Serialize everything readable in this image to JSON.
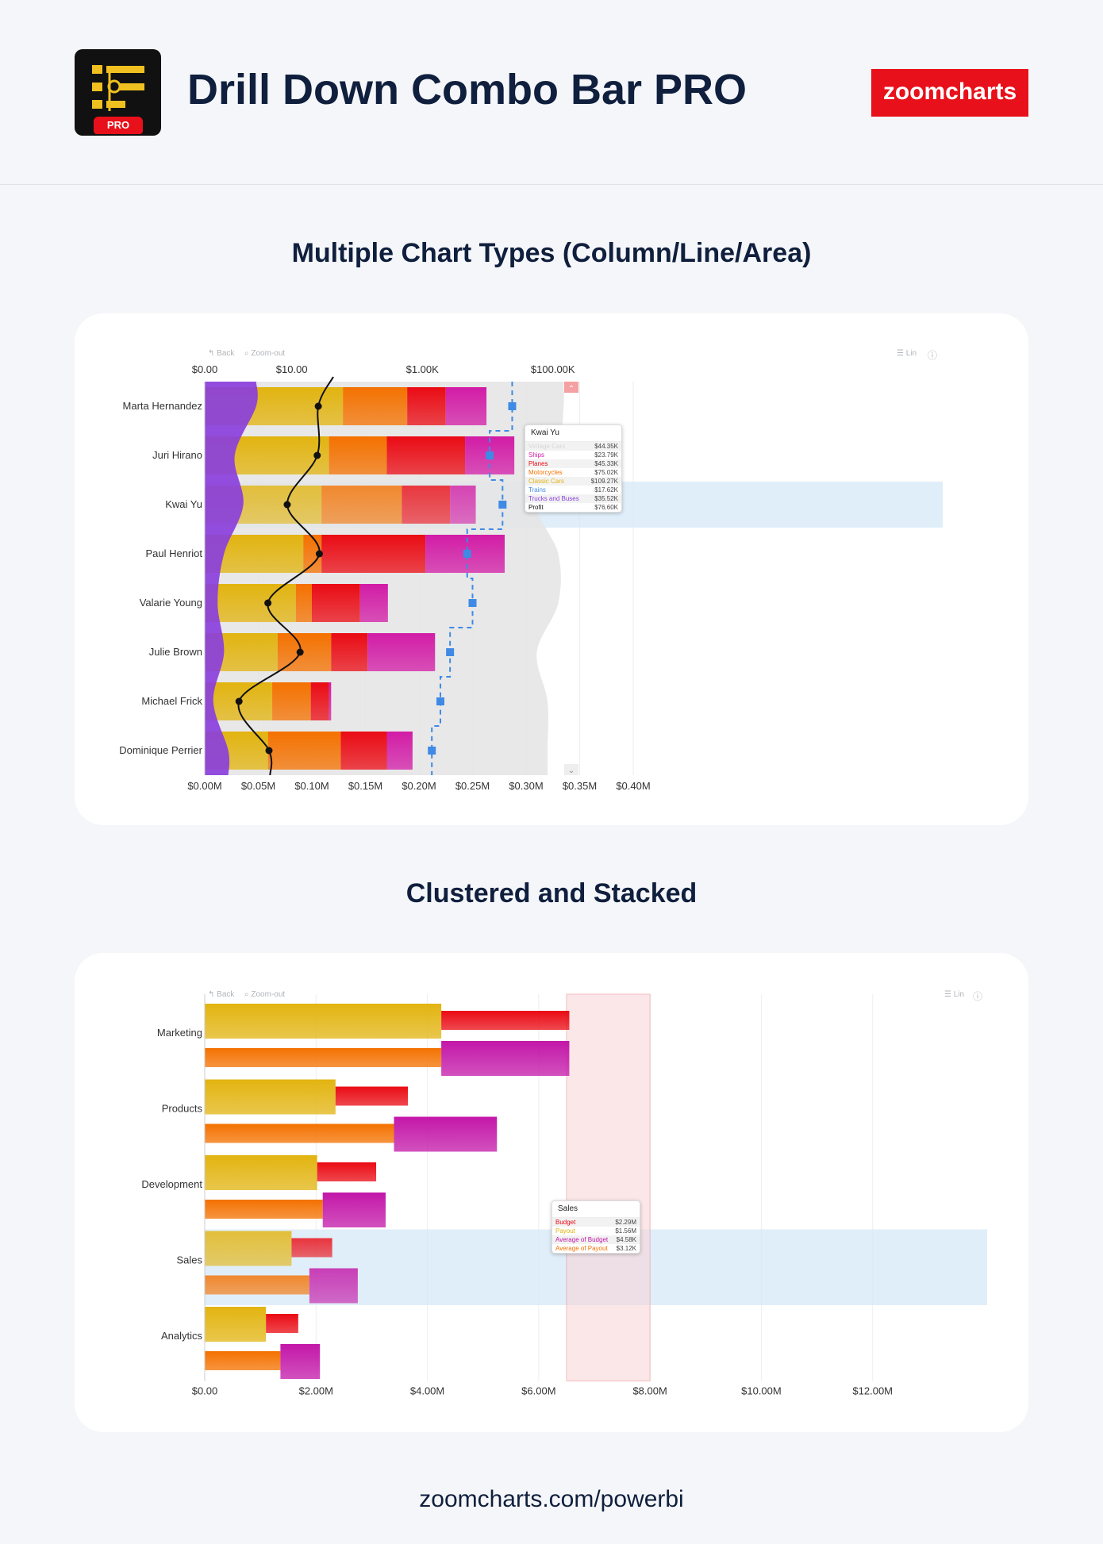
{
  "header": {
    "title": "Drill Down Combo Bar PRO",
    "icon_badge": "PRO",
    "brand": "zoomcharts"
  },
  "sections": [
    {
      "title": "Multiple Chart Types (Column/Line/Area)"
    },
    {
      "title": "Clustered and Stacked"
    }
  ],
  "toolbar": {
    "back": "Back",
    "zoom_out": "Zoom-out",
    "scale": "Lin"
  },
  "footer": {
    "url": "zoomcharts.com/powerbi"
  },
  "tooltip1": {
    "title": "Kwai Yu",
    "rows": [
      {
        "label": "Vintage Cars",
        "value": "$44.35K",
        "color": "#d7d7d7"
      },
      {
        "label": "Ships",
        "value": "$23.79K",
        "color": "#d21ca6"
      },
      {
        "label": "Planes",
        "value": "$45.33K",
        "color": "#ea0b14"
      },
      {
        "label": "Motorcycles",
        "value": "$75.02K",
        "color": "#f47100"
      },
      {
        "label": "Classic Cars",
        "value": "$109.27K",
        "color": "#e2b410"
      },
      {
        "label": "Trains",
        "value": "$17.62K",
        "color": "#3f8ae5"
      },
      {
        "label": "Trucks and Buses",
        "value": "$35.52K",
        "color": "#8a3fdc"
      },
      {
        "label": "Profit",
        "value": "$76.60K",
        "color": "#111111"
      }
    ]
  },
  "tooltip2": {
    "title": "Sales",
    "rows": [
      {
        "label": "Budget",
        "value": "$2.29M",
        "color": "#ea0b14"
      },
      {
        "label": "Payout",
        "value": "$1.56M",
        "color": "#e2b410"
      },
      {
        "label": "Average of Budget",
        "value": "$4.58K",
        "color": "#c317a8"
      },
      {
        "label": "Average of Payout",
        "value": "$3.12K",
        "color": "#f47100"
      }
    ]
  },
  "chart_data": [
    {
      "type": "bar",
      "title": "Multiple Chart Types (Column/Line/Area)",
      "categories": [
        "Marta Hernandez",
        "Juri Hirano",
        "Kwai Yu",
        "Paul Henriot",
        "Valarie Young",
        "Julie Brown",
        "Michael Frick",
        "Dominique Perrier"
      ],
      "highlight": "Kwai Yu",
      "x_ticks": [
        "$0.00M",
        "$0.05M",
        "$0.10M",
        "$0.15M",
        "$0.20M",
        "$0.25M",
        "$0.30M",
        "$0.35M",
        "$0.40M"
      ],
      "xlim": [
        0,
        0.4
      ],
      "top_ticks": [
        "$0.00",
        "$10.00",
        "$1.00K",
        "$100.00K"
      ],
      "colors": {
        "Classic Cars": "#e2b410",
        "Motorcycles": "#f47100",
        "Planes": "#ea0b14",
        "Ships": "#d21ca6",
        "Vintage Cars": "#d7d7d7",
        "Trucks and Buses": "#8a3fdc",
        "Trains": "#3f8ae5",
        "Profit": "#111111"
      },
      "stack_series": [
        {
          "name": "Classic Cars",
          "values": [
            0.129,
            0.116,
            0.109,
            0.092,
            0.085,
            0.068,
            0.063,
            0.059
          ]
        },
        {
          "name": "Motorcycles",
          "values": [
            0.06,
            0.054,
            0.075,
            0.017,
            0.015,
            0.05,
            0.036,
            0.068
          ]
        },
        {
          "name": "Planes",
          "values": [
            0.036,
            0.073,
            0.045,
            0.097,
            0.045,
            0.034,
            0.017,
            0.043
          ]
        },
        {
          "name": "Ships",
          "values": [
            0.038,
            0.046,
            0.024,
            0.074,
            0.026,
            0.063,
            0.002,
            0.024
          ]
        }
      ],
      "area_series": [
        {
          "name": "Vintage Cars",
          "values": [
            0.335,
            0.33,
            0.31,
            0.33,
            0.33,
            0.31,
            0.32,
            0.32
          ]
        },
        {
          "name": "Trucks and Buses",
          "values": [
            0.048,
            0.028,
            0.036,
            0.018,
            0.012,
            0.018,
            0.008,
            0.022
          ]
        }
      ],
      "step_series": {
        "name": "Trains",
        "values": [
          0.287,
          0.266,
          0.278,
          0.245,
          0.25,
          0.229,
          0.22,
          0.212
        ]
      },
      "line_series": {
        "name": "Profit",
        "values": [
          0.106,
          0.105,
          0.077,
          0.107,
          0.059,
          0.089,
          0.032,
          0.06
        ]
      }
    },
    {
      "type": "bar",
      "title": "Clustered and Stacked",
      "categories": [
        "Marketing",
        "Products",
        "Development",
        "Sales",
        "Analytics"
      ],
      "highlight": "Sales",
      "x_ticks": [
        "$0.00",
        "$2.00M",
        "$4.00M",
        "$6.00M",
        "$8.00M",
        "$10.00M",
        "$12.00M"
      ],
      "xlim": [
        0,
        14
      ],
      "band": [
        6.5,
        8.0
      ],
      "colors": {
        "Payout": "#e2b410",
        "Budget": "#ea0b14",
        "Average of Payout": "#f47100",
        "Average of Budget": "#c317a8"
      },
      "series": [
        {
          "name": "Payout",
          "values": [
            4.25,
            2.35,
            2.02,
            1.56,
            1.1
          ]
        },
        {
          "name": "Budget",
          "values": [
            6.55,
            3.65,
            3.08,
            2.29,
            1.68
          ]
        },
        {
          "name": "Average of Payout",
          "values": [
            4.25,
            3.4,
            2.12,
            1.88,
            1.36
          ]
        },
        {
          "name": "Average of Budget",
          "values": [
            6.55,
            5.25,
            3.25,
            2.75,
            2.07
          ]
        }
      ]
    }
  ]
}
